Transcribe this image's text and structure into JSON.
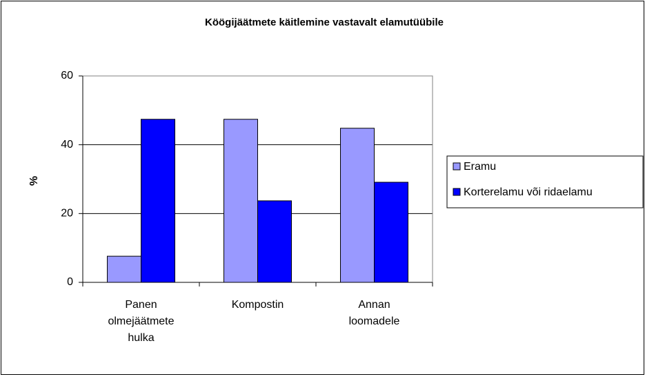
{
  "chart_data": {
    "type": "bar",
    "title": "Köögijäätmete käitlemine vastavalt elamutüübile",
    "ylabel": "%",
    "categories": [
      "Panen olmejäätmete hulka",
      "Kompostin",
      "Annan loomadele"
    ],
    "series": [
      {
        "name": "Eramu",
        "color": "#9999ff",
        "values": [
          7.6,
          47.4,
          44.8
        ]
      },
      {
        "name": "Korterelamu või ridaelamu",
        "color": "#0000ff",
        "values": [
          47.4,
          23.7,
          29.1
        ]
      }
    ],
    "ylim": [
      0,
      60
    ],
    "yticks": [
      0,
      20,
      40,
      60
    ],
    "grid": true,
    "legend": "right"
  }
}
